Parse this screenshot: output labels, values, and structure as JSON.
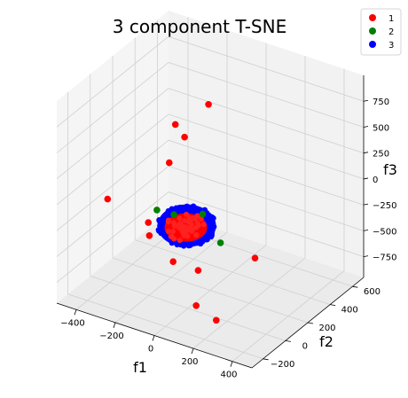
{
  "chart_data": {
    "type": "scatter",
    "projection": "3d",
    "title": "3 component T-SNE",
    "xlabel": "f1",
    "ylabel": "f2",
    "zlabel": "f3",
    "xlim": [
      -500,
      500
    ],
    "ylim": [
      -300,
      700
    ],
    "zlim": [
      -950,
      1000
    ],
    "xticks": [
      "−400",
      "−200",
      "0",
      "200",
      "400"
    ],
    "yticks": [
      "−200",
      "0",
      "200",
      "400",
      "600"
    ],
    "zticks": [
      "−750",
      "−500",
      "−250",
      "0",
      "250",
      "500",
      "750"
    ],
    "grid": true,
    "legend": {
      "placement": "top-right",
      "entries": [
        "1",
        "2",
        "3"
      ]
    },
    "colors": {
      "1": "#ff0000",
      "2": "#008000",
      "3": "#0000ff"
    },
    "series": [
      {
        "name": "1",
        "color": "#ff0000",
        "points": [
          {
            "x": 20,
            "y": 150,
            "z": 900
          },
          {
            "x": -150,
            "y": 150,
            "z": 600
          },
          {
            "x": -120,
            "y": 180,
            "z": 470
          },
          {
            "x": -210,
            "y": 200,
            "z": 150
          },
          {
            "x": -180,
            "y": -40,
            "z": -200
          },
          {
            "x": -480,
            "y": 120,
            "z": -300
          },
          {
            "x": -220,
            "y": 40,
            "z": -420
          },
          {
            "x": -110,
            "y": 60,
            "z": -620
          },
          {
            "x": 30,
            "y": 40,
            "z": -600
          },
          {
            "x": 470,
            "y": -220,
            "z": 20
          },
          {
            "x": 60,
            "y": -30,
            "z": -860
          },
          {
            "x": 180,
            "y": -60,
            "z": -900
          }
        ]
      },
      {
        "name": "2",
        "color": "#008000",
        "points": [
          {
            "x": -210,
            "y": 90,
            "z": -210
          },
          {
            "x": -100,
            "y": 50,
            "z": -150
          },
          {
            "x": 150,
            "y": 30,
            "z": -250
          },
          {
            "x": 30,
            "y": 80,
            "z": -90
          }
        ]
      },
      {
        "name": "3",
        "color": "#0000ff",
        "cluster": {
          "center": {
            "x": -40,
            "y": 60,
            "z": -230
          },
          "radius": 130
        }
      }
    ]
  }
}
